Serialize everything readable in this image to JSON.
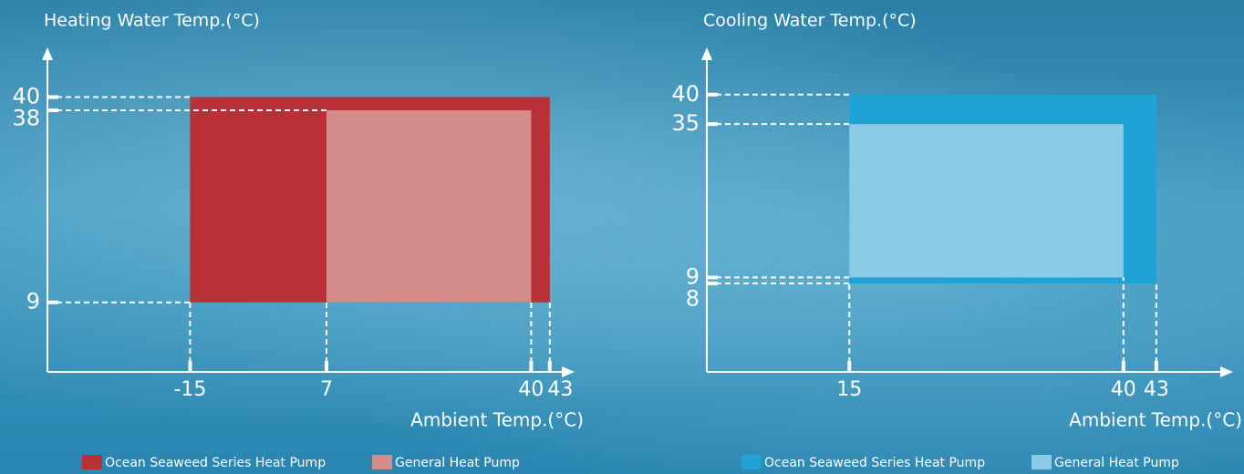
{
  "chart_data": [
    {
      "type": "range",
      "title": "Heating Water Temp.(°C)",
      "x_label": "Ambient Temp.(°C)",
      "xlim": [
        -38,
        47
      ],
      "ylim": [
        -1.5,
        47.5
      ],
      "xticks": [
        -15,
        7,
        40,
        43
      ],
      "yticks": [
        9,
        38,
        40
      ],
      "series": [
        {
          "name": "Ocean Seaweed Series Heat Pump",
          "color": "#b83038",
          "xrange": [
            -15,
            43
          ],
          "yrange": [
            9,
            40
          ]
        },
        {
          "name": "General Heat Pump",
          "color": "#d48c8a",
          "xrange": [
            7,
            40
          ],
          "yrange": [
            9,
            38
          ]
        }
      ]
    },
    {
      "type": "range",
      "title": "Cooling Water Temp.(°C)",
      "x_label": "Ambient Temp.(°C)",
      "xlim": [
        2,
        50
      ],
      "ylim": [
        -7,
        48
      ],
      "xticks": [
        15,
        40,
        43
      ],
      "yticks": [
        8,
        9,
        35,
        40
      ],
      "series": [
        {
          "name": "Ocean Seaweed Series Heat Pump",
          "color": "#1fa3d4",
          "xrange": [
            15,
            43
          ],
          "yrange": [
            8,
            40
          ]
        },
        {
          "name": "General Heat Pump",
          "color": "#8ccbe6",
          "xrange": [
            15,
            40
          ],
          "yrange": [
            9,
            35
          ]
        }
      ]
    }
  ]
}
